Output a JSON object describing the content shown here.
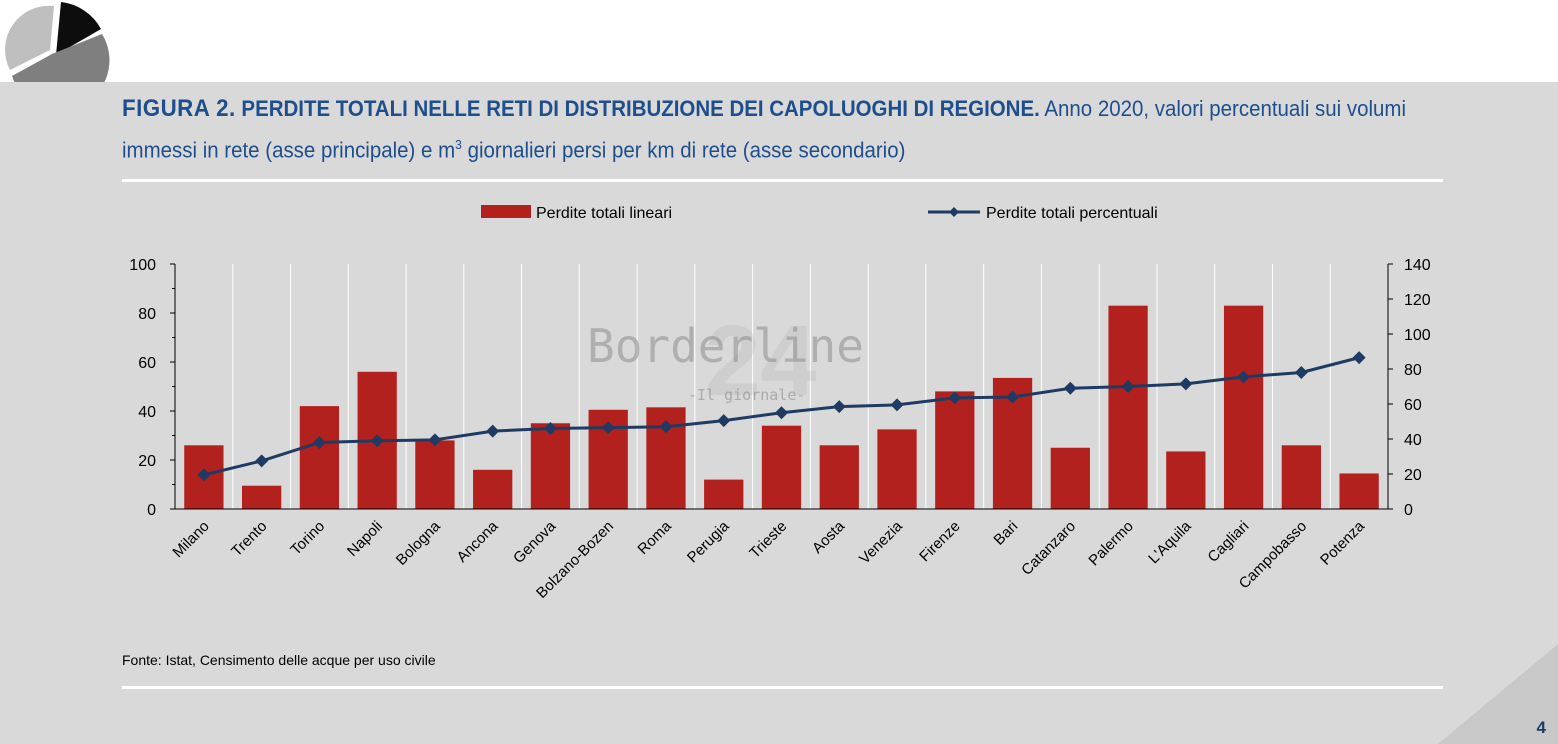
{
  "figure_label": "FIGURA 2.",
  "title_bold": "PERDITE TOTALI NELLE RETI DI DISTRIBUZIONE DEI CAPOLUOGHI DI REGIONE.",
  "title_rest_1": "Anno 2020, valori percentuali sui volumi immessi in rete (asse principale) e m",
  "title_sup": "3",
  "title_rest_2": "giornalieri persi per km di rete (asse secondario)",
  "source": "Fonte: Istat, Censimento delle acque per uso civile",
  "page_number": "4",
  "watermark": {
    "main": "Borderline",
    "sub": "-Il giornale-",
    "big": "24"
  },
  "colors": {
    "bar": "#b3211e",
    "line": "#1f3b63",
    "panel": "#d9d9d9",
    "title": "#1f4e8c"
  },
  "chart_data": {
    "type": "bar+line",
    "categories": [
      "Milano",
      "Trento",
      "Torino",
      "Napoli",
      "Bologna",
      "Ancona",
      "Genova",
      "Bolzano-Bozen",
      "Roma",
      "Perugia",
      "Trieste",
      "Aosta",
      "Venezia",
      "Firenze",
      "Bari",
      "Catanzaro",
      "Palermo",
      "L'Aquila",
      "Cagliari",
      "Campobasso",
      "Potenza"
    ],
    "series": [
      {
        "name": "Perdite totali lineari",
        "type": "bar",
        "axis": "left",
        "values": [
          26,
          9.5,
          42,
          56,
          28,
          16,
          35,
          40.5,
          41.5,
          12,
          34,
          26,
          32.5,
          48,
          53.5,
          25,
          83,
          23.5,
          83,
          26,
          14.5
        ]
      },
      {
        "name": "Perdite totali percentuali",
        "type": "line",
        "axis": "right",
        "values": [
          19.5,
          27.5,
          38,
          39,
          39.5,
          44.5,
          46,
          46.5,
          47,
          50.5,
          55,
          58.5,
          59.5,
          63.5,
          64,
          69,
          70,
          71.5,
          75.5,
          78,
          86.5
        ]
      }
    ],
    "y_left": {
      "range": [
        0,
        100
      ],
      "ticks": [
        "0",
        "20",
        "40",
        "60",
        "80",
        "100"
      ]
    },
    "y_right": {
      "range": [
        0,
        140
      ],
      "ticks": [
        "0",
        "20",
        "40",
        "60",
        "80",
        "100",
        "120",
        "140"
      ]
    },
    "legend": [
      "Perdite totali lineari",
      "Perdite totali percentuali"
    ],
    "legend_position": "top"
  }
}
